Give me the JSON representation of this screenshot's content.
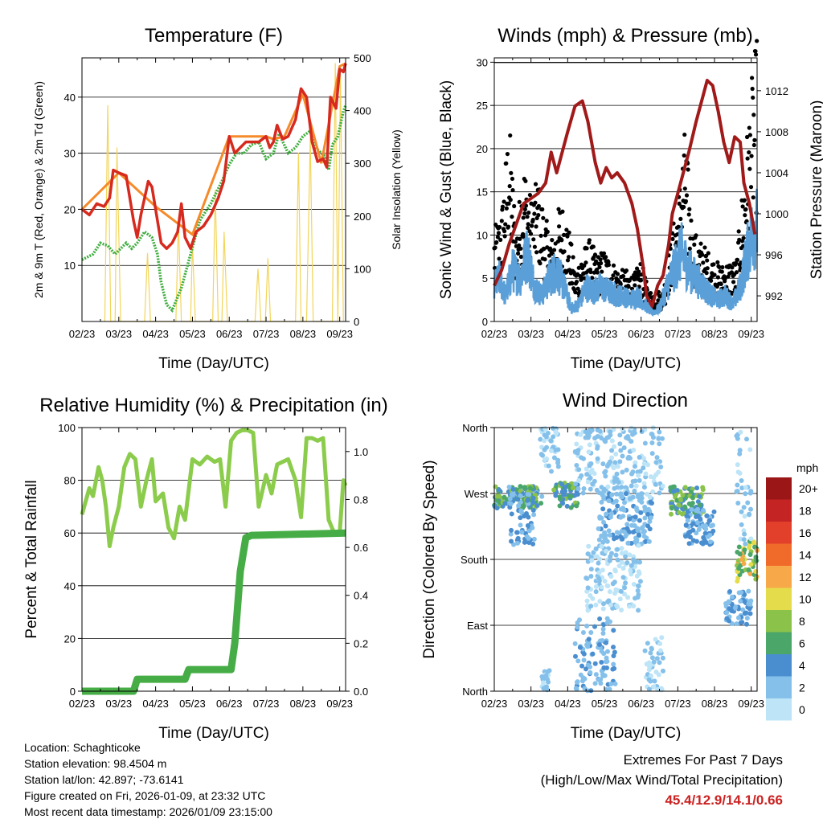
{
  "colors": {
    "temp_2m": "#d62a1f",
    "temp_9m": "#f58a2a",
    "dewpoint": "#3fae3f",
    "solar": "#f2d55a",
    "wind": "#5a9fd8",
    "gust": "#000000",
    "pressure": "#a01a1a",
    "rh": "#8ccc4c",
    "precip": "#46ad46"
  },
  "chart_data": [
    {
      "id": "temperature",
      "type": "line",
      "title": "Temperature (F)",
      "xlabel": "Time (Day/UTC)",
      "ylabel": "2m & 9m T (Red, Orange) & 2m Td (Green)",
      "y2label": "Solar Insolation (Yellow)",
      "x_ticklabels": [
        "02/23",
        "03/23",
        "04/23",
        "05/23",
        "06/23",
        "07/23",
        "08/23",
        "09/23"
      ],
      "xlim": [
        0,
        7.16
      ],
      "ylim": [
        0,
        47
      ],
      "y_ticks": [
        10,
        20,
        30,
        40
      ],
      "y2lim": [
        0,
        500
      ],
      "y2_ticks": [
        0,
        100,
        200,
        300,
        400,
        500
      ],
      "series": [
        {
          "name": "2m T",
          "x": [
            0,
            0.2,
            0.4,
            0.6,
            0.75,
            0.85,
            1.0,
            1.2,
            1.4,
            1.5,
            1.6,
            1.7,
            1.8,
            1.9,
            2.0,
            2.15,
            2.3,
            2.45,
            2.6,
            2.7,
            2.8,
            2.95,
            3.1,
            3.3,
            3.5,
            3.7,
            3.85,
            4.0,
            4.15,
            4.3,
            4.45,
            4.6,
            4.8,
            5.0,
            5.1,
            5.2,
            5.3,
            5.45,
            5.6,
            5.8,
            5.95,
            6.1,
            6.25,
            6.4,
            6.55,
            6.65,
            6.75,
            6.9,
            7.0,
            7.1,
            7.16
          ],
          "values": [
            20,
            19,
            21,
            20.5,
            22,
            27,
            26.5,
            26,
            18,
            15,
            19,
            22,
            25,
            24,
            20,
            14,
            13,
            14,
            16,
            21,
            15,
            13,
            16,
            17,
            19,
            22,
            25,
            33,
            30,
            31,
            32,
            32,
            32,
            33,
            31,
            32,
            35,
            32.5,
            33,
            36,
            41.5,
            40,
            32,
            28.5,
            29,
            27.5,
            40,
            38,
            45,
            44.5,
            46
          ]
        },
        {
          "name": "9m T",
          "x": [
            0,
            1.0,
            2.0,
            3.0,
            4.0,
            5.0,
            5.2,
            5.5,
            6.0,
            6.5,
            7.0,
            7.16
          ],
          "values": [
            20,
            26.5,
            20.5,
            15.5,
            33,
            33,
            32.5,
            33,
            40.5,
            28.2,
            45.5,
            46
          ]
        },
        {
          "name": "2m Td",
          "x": [
            0,
            0.3,
            0.5,
            0.7,
            0.9,
            1.2,
            1.35,
            1.5,
            1.7,
            1.9,
            2.05,
            2.15,
            2.3,
            2.45,
            2.7,
            2.95,
            3.2,
            3.5,
            3.8,
            4.0,
            4.2,
            4.4,
            4.6,
            4.8,
            5.0,
            5.2,
            5.35,
            5.6,
            5.8,
            6.0,
            6.2,
            6.35,
            6.5,
            6.6,
            6.7,
            6.8,
            6.95,
            7.1,
            7.16
          ],
          "values": [
            11,
            12,
            14,
            13.5,
            12,
            14,
            13,
            14,
            16,
            15,
            12,
            7,
            3,
            2,
            6,
            12,
            18,
            21,
            25,
            28,
            30,
            30,
            31.5,
            32,
            29,
            30,
            33.5,
            30,
            31,
            33,
            34,
            31,
            30,
            29.5,
            27,
            31.5,
            33,
            37.5,
            38.5
          ]
        },
        {
          "name": "Solar Insolation",
          "axis": "y2",
          "x": [
            0.62,
            0.7,
            0.78,
            0.9,
            0.95,
            1.05,
            1.7,
            1.78,
            1.86,
            2.55,
            2.62,
            2.7,
            2.95,
            3.0,
            3.08,
            3.55,
            3.62,
            3.7,
            3.8,
            3.86,
            3.95,
            4.7,
            4.78,
            4.86,
            4.98,
            5.05,
            5.12,
            5.8,
            5.88,
            5.95,
            6.1,
            6.2,
            6.28,
            6.8,
            6.88,
            6.95,
            7.02,
            7.1
          ],
          "values": [
            0,
            410,
            0,
            0,
            330,
            0,
            0,
            130,
            0,
            0,
            190,
            0,
            0,
            150,
            0,
            0,
            250,
            0,
            0,
            170,
            0,
            0,
            100,
            0,
            0,
            120,
            0,
            0,
            320,
            0,
            0,
            350,
            0,
            0,
            490,
            0,
            470,
            0
          ]
        }
      ]
    },
    {
      "id": "winds",
      "type": "line",
      "title": "Winds (mph) & Pressure (mb)",
      "xlabel": "Time (Day/UTC)",
      "ylabel": "Sonic Wind & Gust (Blue, Black)",
      "y2label": "Station Pressure (Maroon)",
      "x_ticklabels": [
        "02/23",
        "03/23",
        "04/23",
        "05/23",
        "06/23",
        "07/23",
        "08/23",
        "09/23"
      ],
      "xlim": [
        0,
        7.16
      ],
      "ylim": [
        0,
        30.5
      ],
      "y_ticks": [
        0,
        5,
        10,
        15,
        20,
        25,
        30
      ],
      "y2lim": [
        989.5,
        1015.2
      ],
      "y2_ticks": [
        992,
        996,
        1000,
        1004,
        1008,
        1012
      ],
      "series": [
        {
          "name": "Station Pressure",
          "axis": "y2",
          "x": [
            0,
            0.2,
            0.4,
            0.6,
            0.8,
            1.0,
            1.2,
            1.4,
            1.55,
            1.7,
            1.85,
            2.0,
            2.2,
            2.4,
            2.55,
            2.75,
            2.9,
            3.05,
            3.2,
            3.35,
            3.55,
            3.75,
            3.9,
            4.05,
            4.15,
            4.3,
            4.45,
            4.6,
            4.75,
            4.85,
            5.0,
            5.15,
            5.3,
            5.5,
            5.65,
            5.8,
            5.95,
            6.1,
            6.25,
            6.4,
            6.55,
            6.7,
            6.8,
            6.95,
            7.1
          ],
          "values": [
            993,
            994.5,
            997,
            999,
            1001,
            1001.5,
            1002,
            1003,
            1006,
            1004,
            1006,
            1008,
            1010.5,
            1011,
            1009,
            1005,
            1003,
            1004.5,
            1003.5,
            1004,
            1003,
            1001,
            998.5,
            995,
            992,
            991,
            993,
            994,
            997,
            1000,
            1002,
            1004,
            1006,
            1009,
            1011,
            1013,
            1012.5,
            1010,
            1007,
            1005,
            1007.5,
            1007,
            1003,
            1001,
            998
          ]
        },
        {
          "name": "Sonic Wind",
          "x": [
            0,
            0.15,
            0.3,
            0.5,
            0.7,
            0.9,
            1.1,
            1.3,
            1.5,
            1.7,
            1.9,
            2.1,
            2.3,
            2.5,
            2.7,
            2.9,
            3.1,
            3.3,
            3.5,
            3.7,
            3.9,
            4.1,
            4.3,
            4.5,
            4.7,
            4.9,
            5.1,
            5.3,
            5.5,
            5.7,
            5.9,
            6.1,
            6.3,
            6.5,
            6.7,
            6.9,
            7.0,
            7.16
          ],
          "values": [
            4,
            5,
            3,
            6,
            5,
            8,
            4,
            3,
            5,
            6,
            4,
            1.5,
            2,
            4,
            3.5,
            4,
            3.5,
            3,
            3,
            2.5,
            3,
            2,
            1,
            1.5,
            4,
            6,
            8,
            6,
            5,
            4,
            3,
            2.5,
            3,
            2,
            4,
            8,
            10,
            11
          ]
        },
        {
          "name": "Gust",
          "x": [
            0,
            0.2,
            0.4,
            0.6,
            0.8,
            1.0,
            1.2,
            1.4,
            1.6,
            1.8,
            2.0,
            2.2,
            2.4,
            2.6,
            2.8,
            3.0,
            3.2,
            3.4,
            3.6,
            3.8,
            4.0,
            4.2,
            4.4,
            4.6,
            4.8,
            5.0,
            5.2,
            5.4,
            5.6,
            5.8,
            6.0,
            6.2,
            6.4,
            6.6,
            6.8,
            7.0,
            7.16
          ],
          "values": [
            9,
            11,
            20,
            9,
            16,
            12,
            14,
            10,
            8,
            12,
            10,
            5,
            7,
            8,
            6.5,
            7,
            6,
            5,
            5,
            4.5,
            6,
            3,
            3,
            3,
            8,
            12,
            19,
            9,
            8,
            7,
            6,
            5.5,
            6,
            6,
            15,
            23,
            28
          ]
        }
      ]
    },
    {
      "id": "humidity",
      "type": "line",
      "title": "Relative Humidity (%) & Precipitation (in)",
      "xlabel": "Time (Day/UTC)",
      "ylabel": "Percent & Total Rainfall",
      "x_ticklabels": [
        "02/23",
        "03/23",
        "04/23",
        "05/23",
        "06/23",
        "07/23",
        "08/23",
        "09/23"
      ],
      "xlim": [
        0,
        7.16
      ],
      "ylim": [
        0,
        100
      ],
      "y_ticks": [
        0,
        20,
        40,
        60,
        80,
        100
      ],
      "y2lim": [
        0,
        1.1
      ],
      "y2_ticks": [
        0.0,
        0.2,
        0.4,
        0.6,
        0.8,
        1.0
      ],
      "series": [
        {
          "name": "Relative Humidity",
          "x": [
            0,
            0.1,
            0.2,
            0.3,
            0.45,
            0.55,
            0.65,
            0.75,
            0.85,
            1.0,
            1.15,
            1.3,
            1.45,
            1.6,
            1.75,
            1.9,
            2.0,
            2.2,
            2.35,
            2.5,
            2.65,
            2.8,
            3.0,
            3.2,
            3.4,
            3.6,
            3.75,
            3.9,
            4.05,
            4.2,
            4.35,
            4.5,
            4.65,
            4.8,
            5.0,
            5.15,
            5.3,
            5.45,
            5.6,
            5.8,
            5.95,
            6.1,
            6.25,
            6.4,
            6.55,
            6.7,
            6.85,
            7.0,
            7.1,
            7.16
          ],
          "values": [
            67,
            72,
            77,
            74,
            85,
            80,
            70,
            55,
            62,
            70,
            85,
            90,
            88,
            70,
            80,
            88,
            72,
            75,
            62,
            58,
            70,
            65,
            88,
            86,
            89,
            87,
            88,
            70,
            95,
            98,
            99,
            99,
            98,
            70,
            82,
            75,
            86,
            87,
            88,
            80,
            66,
            96,
            96,
            95,
            96,
            65,
            60,
            60,
            80,
            78
          ]
        },
        {
          "name": "Total Precipitation",
          "axis": "y2",
          "x": [
            0,
            1.4,
            1.5,
            2.8,
            2.9,
            4.05,
            4.15,
            4.3,
            4.45,
            4.6,
            7.16
          ],
          "values": [
            0.0,
            0.0,
            0.05,
            0.05,
            0.09,
            0.09,
            0.2,
            0.5,
            0.64,
            0.65,
            0.66
          ]
        }
      ]
    },
    {
      "id": "direction",
      "type": "scatter",
      "title": "Wind Direction",
      "xlabel": "Time (Day/UTC)",
      "ylabel": "Direction (Colored By Speed)",
      "x_ticklabels": [
        "02/23",
        "03/23",
        "04/23",
        "05/23",
        "06/23",
        "07/23",
        "08/23",
        "09/23"
      ],
      "xlim": [
        0,
        7.16
      ],
      "ylim": [
        0,
        360
      ],
      "y_ticks": [
        0,
        90,
        180,
        270,
        360
      ],
      "y_ticklabels": [
        "North",
        "East",
        "South",
        "West",
        "North"
      ],
      "colorbar_title": "mph",
      "colorbar_labels": [
        "0",
        "2",
        "4",
        "6",
        "8",
        "10",
        "12",
        "14",
        "16",
        "18",
        "20+"
      ],
      "colorbar_colors": [
        "#bde4f7",
        "#84c0ea",
        "#4a8ed0",
        "#4ba66a",
        "#8bc34a",
        "#e5dc4c",
        "#f7a848",
        "#f06a2a",
        "#e2402a",
        "#c42424",
        "#9b1616"
      ],
      "clusters": [
        {
          "x": [
            0.0,
            1.3
          ],
          "dir": [
            250,
            280
          ],
          "speed": [
            2,
            9
          ]
        },
        {
          "x": [
            0.4,
            1.1
          ],
          "dir": [
            200,
            270
          ],
          "speed": [
            1,
            5
          ]
        },
        {
          "x": [
            1.25,
            1.75
          ],
          "dir": [
            300,
            360
          ],
          "speed": [
            0,
            2
          ]
        },
        {
          "x": [
            1.6,
            2.3
          ],
          "dir": [
            250,
            285
          ],
          "speed": [
            3,
            8
          ]
        },
        {
          "x": [
            2.2,
            4.6
          ],
          "dir": [
            260,
            360
          ],
          "speed": [
            0,
            3
          ]
        },
        {
          "x": [
            2.8,
            4.3
          ],
          "dir": [
            200,
            270
          ],
          "speed": [
            1,
            4
          ]
        },
        {
          "x": [
            2.2,
            3.3
          ],
          "dir": [
            0,
            100
          ],
          "speed": [
            1,
            4
          ]
        },
        {
          "x": [
            4.1,
            4.6
          ],
          "dir": [
            0,
            80
          ],
          "speed": [
            0,
            2
          ]
        },
        {
          "x": [
            1.3,
            1.5
          ],
          "dir": [
            0,
            30
          ],
          "speed": [
            0,
            3
          ]
        },
        {
          "x": [
            2.5,
            4.0
          ],
          "dir": [
            110,
            200
          ],
          "speed": [
            0,
            2
          ]
        },
        {
          "x": [
            4.8,
            5.7
          ],
          "dir": [
            240,
            280
          ],
          "speed": [
            3,
            9
          ]
        },
        {
          "x": [
            5.2,
            6.0
          ],
          "dir": [
            200,
            250
          ],
          "speed": [
            1,
            5
          ]
        },
        {
          "x": [
            6.3,
            7.0
          ],
          "dir": [
            90,
            140
          ],
          "speed": [
            1,
            5
          ]
        },
        {
          "x": [
            6.6,
            7.16
          ],
          "dir": [
            150,
            205
          ],
          "speed": [
            5,
            12
          ]
        },
        {
          "x": [
            6.6,
            7.0
          ],
          "dir": [
            200,
            360
          ],
          "speed": [
            0,
            3
          ]
        }
      ]
    }
  ],
  "info": {
    "location": "Location: Schaghticoke",
    "elevation": "Station elevation: 98.4504 m",
    "latlon": "Station lat/lon: 42.897; -73.6141",
    "created": "Figure created on Fri, 2026-01-09, at 23:32 UTC",
    "recent": "Most recent data timestamp: 2026/01/09 23:15:00"
  },
  "extremes": {
    "title": "Extremes For Past 7 Days",
    "subtitle": "(High/Low/Max Wind/Total Precipitation)",
    "values": "45.4/12.9/14.1/0.66"
  }
}
